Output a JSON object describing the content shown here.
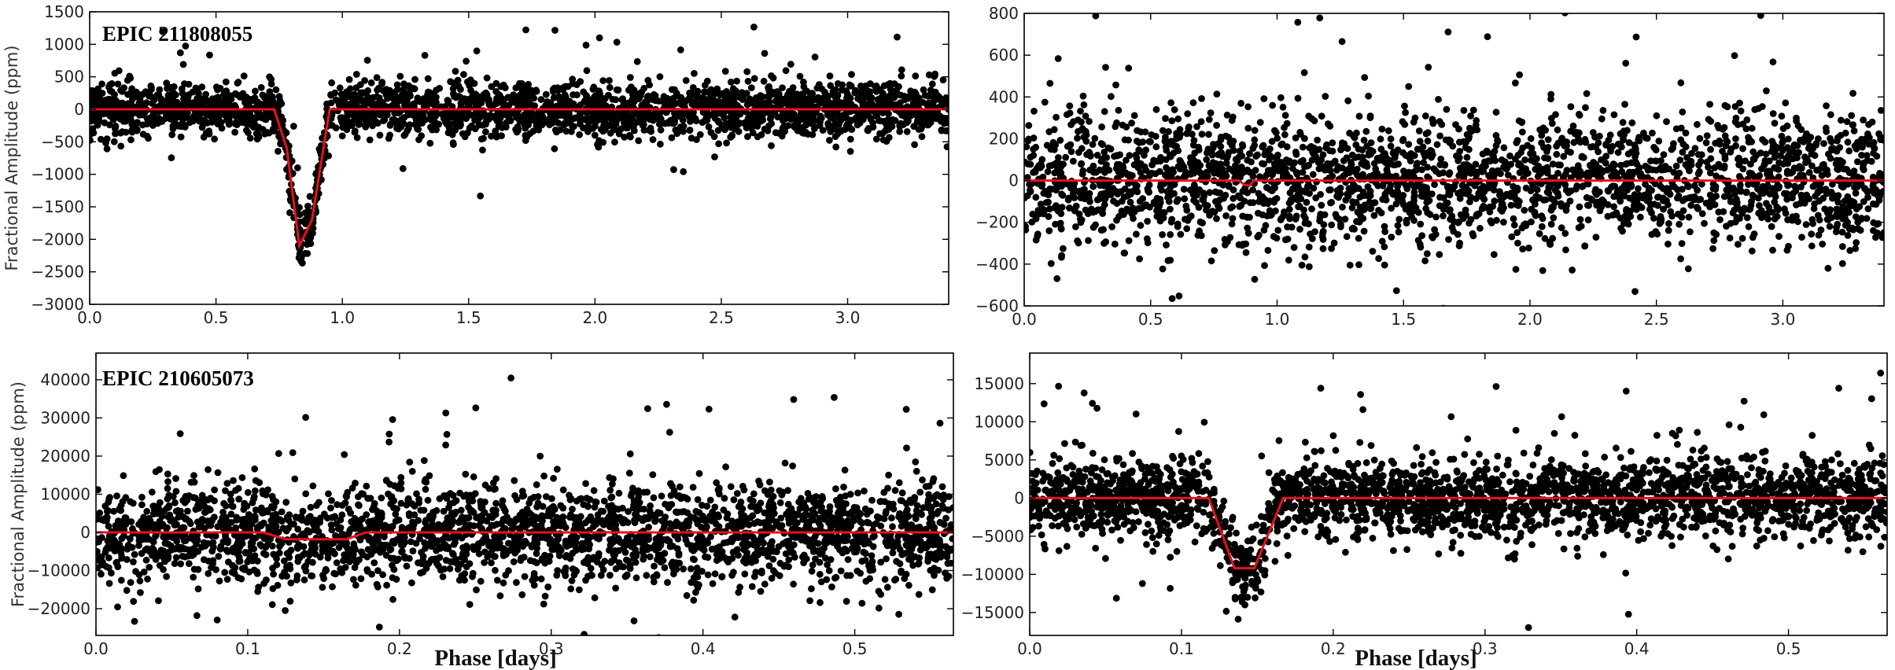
{
  "colors": {
    "points": "#000000",
    "model": "#e8101e",
    "axes": "#000000"
  },
  "chart_data": [
    {
      "type": "scatter",
      "id": "top-left",
      "title": "EPIC 211808055",
      "ylabel": "Fractional Amplitude (ppm)",
      "xlabel": "",
      "xlim": [
        0.0,
        3.4
      ],
      "ylim": [
        -3000,
        1500
      ],
      "xticks": [
        "0.0",
        "0.5",
        "1.0",
        "1.5",
        "2.0",
        "2.5",
        "3.0"
      ],
      "xtick_values": [
        0.0,
        0.5,
        1.0,
        1.5,
        2.0,
        2.5,
        3.0
      ],
      "yticks": [
        "1500",
        "1000",
        "500",
        "0",
        "−500",
        "−1000",
        "−1500",
        "−2000",
        "−2500",
        "−3000"
      ],
      "ytick_values": [
        1500,
        1000,
        500,
        0,
        -500,
        -1000,
        -1500,
        -2000,
        -2500,
        -3000
      ],
      "grid": false,
      "noise_scatter": 210,
      "transit_model": {
        "x": [
          0.0,
          0.73,
          0.78,
          0.83,
          0.88,
          0.95,
          3.4
        ],
        "y": [
          0,
          0,
          -600,
          -2100,
          -1700,
          0,
          0
        ]
      }
    },
    {
      "type": "scatter",
      "id": "top-right",
      "title": "",
      "ylabel": "",
      "xlabel": "",
      "xlim": [
        0.0,
        3.4
      ],
      "ylim": [
        -600,
        800
      ],
      "xticks": [
        "0.0",
        "0.5",
        "1.0",
        "1.5",
        "2.0",
        "2.5",
        "3.0"
      ],
      "xtick_values": [
        0.0,
        0.5,
        1.0,
        1.5,
        2.0,
        2.5,
        3.0
      ],
      "yticks": [
        "800",
        "600",
        "400",
        "200",
        "0",
        "−200",
        "−400",
        "−600"
      ],
      "ytick_values": [
        800,
        600,
        400,
        200,
        0,
        -200,
        -400,
        -600
      ],
      "grid": false,
      "noise_scatter": 160,
      "transit_model": {
        "x": [
          0.0,
          0.85,
          0.87,
          0.89,
          0.91,
          3.4
        ],
        "y": [
          0,
          0,
          -20,
          -25,
          0,
          0
        ]
      }
    },
    {
      "type": "scatter",
      "id": "bottom-left",
      "title": "EPIC 210605073",
      "ylabel": "Fractional Amplitude (ppm)",
      "xlabel": "Phase [days]",
      "xlim": [
        0.0,
        0.565
      ],
      "ylim": [
        -27000,
        47000
      ],
      "xticks": [
        "0.0",
        "0.1",
        "0.2",
        "0.3",
        "0.4",
        "0.5"
      ],
      "xtick_values": [
        0.0,
        0.1,
        0.2,
        0.3,
        0.4,
        0.5
      ],
      "yticks": [
        "40000",
        "30000",
        "20000",
        "10000",
        "0",
        "−10000",
        "−20000"
      ],
      "ytick_values": [
        40000,
        30000,
        20000,
        10000,
        0,
        -10000,
        -20000
      ],
      "grid": false,
      "noise_scatter": 6500,
      "transit_model": {
        "x": [
          0.0,
          0.11,
          0.125,
          0.165,
          0.178,
          0.565
        ],
        "y": [
          0,
          0,
          -1800,
          -1800,
          0,
          0
        ]
      }
    },
    {
      "type": "scatter",
      "id": "bottom-right",
      "title": "",
      "ylabel": "",
      "xlabel": "Phase [days]",
      "xlim": [
        0.0,
        0.565
      ],
      "ylim": [
        -18000,
        19000
      ],
      "xticks": [
        "0.0",
        "0.1",
        "0.2",
        "0.3",
        "0.4",
        "0.5"
      ],
      "xtick_values": [
        0.0,
        0.1,
        0.2,
        0.3,
        0.4,
        0.5
      ],
      "yticks": [
        "15000",
        "10000",
        "5000",
        "0",
        "−5000",
        "−10000",
        "−15000"
      ],
      "ytick_values": [
        15000,
        10000,
        5000,
        0,
        -5000,
        -10000,
        -15000
      ],
      "grid": false,
      "noise_scatter": 2600,
      "transit_model": {
        "x": [
          0.0,
          0.118,
          0.135,
          0.148,
          0.167,
          0.565
        ],
        "y": [
          0,
          0,
          -9200,
          -9200,
          0,
          0
        ]
      }
    }
  ]
}
